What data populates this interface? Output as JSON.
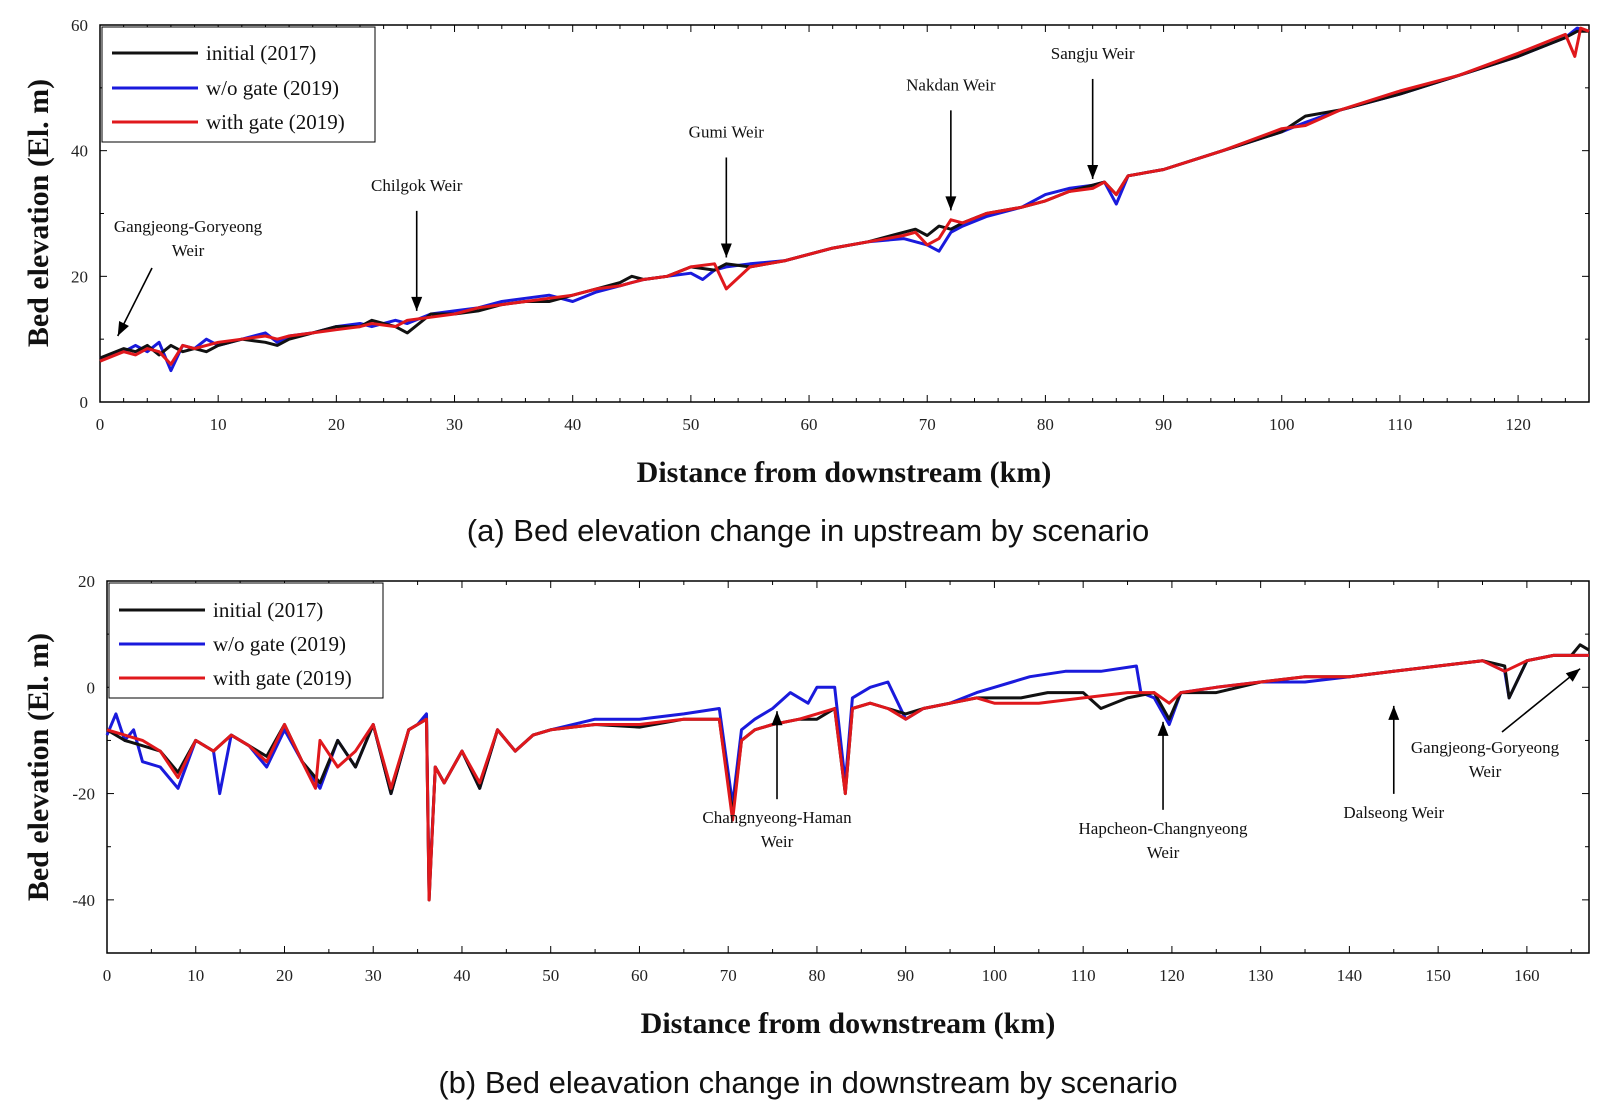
{
  "chart_data": [
    {
      "type": "line",
      "panel": "a",
      "caption": "(a) Bed elevation change in upstream by scenario",
      "xlabel": "Distance from downstream (km)",
      "ylabel": "Bed elevation (El. m)",
      "xlim": [
        0,
        126
      ],
      "ylim": [
        0,
        60
      ],
      "xticks": [
        0,
        10,
        20,
        30,
        40,
        50,
        60,
        70,
        80,
        90,
        100,
        110,
        120
      ],
      "yticks": [
        0,
        20,
        40,
        60
      ],
      "legend_position": "top-left",
      "series": [
        {
          "name": "initial (2017)",
          "color": "#111111",
          "x": [
            0,
            2,
            3,
            4,
            5,
            6,
            7,
            8,
            9,
            10,
            12,
            14,
            15,
            16,
            18,
            20,
            22,
            23,
            25,
            26,
            28,
            30,
            32,
            34,
            36,
            38,
            40,
            42,
            44,
            45,
            46,
            48,
            50,
            52,
            53,
            55,
            58,
            60,
            62,
            65,
            68,
            69,
            70,
            71,
            72,
            73,
            75,
            78,
            80,
            82,
            84,
            85,
            86,
            87,
            90,
            95,
            100,
            102,
            105,
            110,
            115,
            120,
            124,
            125,
            126
          ],
          "y": [
            7,
            8.5,
            8,
            9,
            7.5,
            9,
            8,
            8.5,
            8,
            9,
            10,
            9.5,
            9,
            10,
            11,
            12,
            12,
            13,
            12,
            11,
            14,
            14,
            14.5,
            15.5,
            16,
            16,
            17,
            18,
            19,
            20,
            19.5,
            20,
            21.5,
            21,
            22,
            21.5,
            22.5,
            23.5,
            24.5,
            25.5,
            27,
            27.5,
            26.5,
            28,
            27.5,
            28.5,
            30,
            31,
            32,
            33.5,
            34.5,
            35,
            33,
            36,
            37,
            40,
            43,
            45.5,
            46.5,
            49,
            52,
            55,
            58,
            59,
            59
          ]
        },
        {
          "name": "w/o gate (2019)",
          "color": "#1a1adc",
          "x": [
            0,
            2,
            3,
            4,
            5,
            6,
            7,
            8,
            9,
            10,
            12,
            14,
            15,
            16,
            18,
            20,
            22,
            23,
            25,
            26,
            28,
            30,
            32,
            34,
            36,
            38,
            40,
            42,
            44,
            45,
            46,
            48,
            50,
            51,
            52,
            53,
            55,
            58,
            60,
            62,
            65,
            68,
            70,
            71,
            72,
            73,
            75,
            78,
            80,
            82,
            84,
            85,
            86,
            87,
            90,
            95,
            100,
            102,
            105,
            110,
            115,
            120,
            124,
            125,
            126
          ],
          "y": [
            7,
            8,
            9,
            8,
            9.5,
            5,
            9,
            8.5,
            10,
            9,
            10,
            11,
            9.5,
            10.5,
            11,
            12,
            12.5,
            12,
            13,
            12.5,
            14,
            14.5,
            15,
            16,
            16.5,
            17,
            16,
            17.5,
            18.5,
            19,
            19.5,
            20,
            20.5,
            19.5,
            21,
            21.5,
            22,
            22.5,
            23.5,
            24.5,
            25.5,
            26,
            25,
            24,
            27,
            28,
            29.5,
            31,
            33,
            34,
            34.5,
            35,
            31.5,
            36,
            37,
            40,
            43,
            44.5,
            46.5,
            49,
            52,
            55,
            58,
            59.5,
            59
          ]
        },
        {
          "name": "with gate (2019)",
          "color": "#e0181c",
          "x": [
            0,
            2,
            3,
            4,
            5,
            6,
            7,
            8,
            9,
            10,
            12,
            14,
            15,
            16,
            18,
            20,
            22,
            23,
            25,
            26,
            28,
            30,
            32,
            34,
            36,
            38,
            40,
            42,
            44,
            45,
            46,
            48,
            50,
            52,
            53,
            55,
            58,
            60,
            62,
            65,
            68,
            69,
            70,
            71,
            72,
            73,
            75,
            78,
            80,
            82,
            84,
            85,
            86,
            87,
            90,
            95,
            100,
            102,
            105,
            110,
            115,
            120,
            124,
            124.8,
            125.3,
            126
          ],
          "y": [
            6.5,
            8,
            7.5,
            8.5,
            8,
            6,
            9,
            8.5,
            9,
            9.5,
            10,
            10.5,
            10,
            10.5,
            11,
            11.5,
            12,
            12.5,
            12,
            13,
            13.5,
            14,
            15,
            15.5,
            16,
            16.5,
            17,
            18,
            18.5,
            19,
            19.5,
            20,
            21.5,
            22,
            18,
            21.5,
            22.5,
            23.5,
            24.5,
            25.5,
            26.5,
            27,
            25,
            26,
            29,
            28.5,
            30,
            31,
            32,
            33.5,
            34,
            35,
            33,
            36,
            37,
            40,
            43.5,
            44,
            46.5,
            49.5,
            52,
            55.5,
            58.5,
            55,
            59.5,
            59
          ]
        }
      ],
      "annotations": [
        {
          "lines": [
            "Gangjeong-Goryeong",
            "Weir"
          ],
          "x": 1.5,
          "y": 10.5
        },
        {
          "lines": [
            "Chilgok Weir"
          ],
          "x": 26.8,
          "y": 14.5
        },
        {
          "lines": [
            "Gumi Weir"
          ],
          "x": 53,
          "y": 23
        },
        {
          "lines": [
            "Nakdan Weir"
          ],
          "x": 72,
          "y": 30.5
        },
        {
          "lines": [
            "Sangju Weir"
          ],
          "x": 84,
          "y": 35.5
        }
      ]
    },
    {
      "type": "line",
      "panel": "b",
      "caption": "(b) Bed eleavation change in downstream by scenario",
      "xlabel": "Distance from downstream (km)",
      "ylabel": "Bed elevation (El. m)",
      "xlim": [
        0,
        167
      ],
      "ylim": [
        -50,
        20
      ],
      "xticks": [
        0,
        10,
        20,
        30,
        40,
        50,
        60,
        70,
        80,
        90,
        100,
        110,
        120,
        130,
        140,
        150,
        160
      ],
      "yticks": [
        -40,
        -20,
        0,
        20
      ],
      "legend_position": "top-left",
      "series": [
        {
          "name": "initial (2017)",
          "color": "#111111",
          "x": [
            0,
            2,
            4,
            6,
            8,
            10,
            12,
            14,
            16,
            18,
            20,
            22,
            24,
            26,
            28,
            30,
            32,
            34,
            35,
            36,
            36.3,
            37,
            38,
            40,
            42,
            44,
            46,
            48,
            50,
            55,
            60,
            65,
            69,
            70.5,
            71.5,
            73,
            75,
            78,
            80,
            82,
            83.2,
            84,
            86,
            88,
            90,
            92,
            95,
            98,
            100,
            103,
            106,
            110,
            112,
            115,
            118,
            119.7,
            121,
            125,
            130,
            135,
            140,
            145,
            150,
            155,
            157.5,
            158,
            160,
            163,
            165,
            166,
            167
          ],
          "y": [
            -8,
            -10,
            -11,
            -12,
            -16,
            -10,
            -12,
            -9,
            -11,
            -13,
            -7,
            -14,
            -18,
            -10,
            -15,
            -7,
            -20,
            -8,
            -7,
            -6,
            -40,
            -15,
            -18,
            -12,
            -19,
            -8,
            -12,
            -9,
            -8,
            -7,
            -7.5,
            -6,
            -6,
            -24,
            -10,
            -8,
            -7,
            -6,
            -6,
            -4,
            -20,
            -4,
            -3,
            -4,
            -5,
            -4,
            -3,
            -2,
            -2,
            -2,
            -1,
            -1,
            -4,
            -2,
            -1,
            -6,
            -1,
            -1,
            1,
            2,
            2,
            3,
            4,
            5,
            4,
            -2,
            5,
            6,
            6,
            8,
            7
          ]
        },
        {
          "name": "w/o gate (2019)",
          "color": "#1a1adc",
          "x": [
            0,
            1,
            2,
            3,
            4,
            6,
            8,
            10,
            12,
            12.7,
            14,
            16,
            18,
            20,
            22,
            24,
            26,
            28,
            30,
            32,
            34,
            35,
            36,
            36.3,
            37,
            38,
            40,
            42,
            44,
            46,
            48,
            50,
            55,
            60,
            65,
            69,
            70.5,
            71.5,
            73,
            75,
            77,
            79,
            80,
            82,
            83.2,
            84,
            86,
            88,
            90,
            92,
            95,
            98,
            100,
            102,
            104,
            108,
            112,
            116,
            116.5,
            118,
            119.7,
            121,
            125,
            130,
            135,
            140,
            145,
            150,
            155,
            157.5,
            158,
            160,
            163,
            165,
            167
          ],
          "y": [
            -9,
            -5,
            -10,
            -8,
            -14,
            -15,
            -19,
            -10,
            -12,
            -20,
            -9,
            -11,
            -15,
            -8,
            -14,
            -19,
            -10,
            -15,
            -7,
            -20,
            -8,
            -7,
            -5,
            -39,
            -15,
            -18,
            -12,
            -19,
            -8,
            -12,
            -9,
            -8,
            -6,
            -6,
            -5,
            -4,
            -22,
            -8,
            -6,
            -4,
            -1,
            -3,
            0,
            0,
            -18,
            -2,
            0,
            1,
            -6,
            -4,
            -3,
            -1,
            0,
            1,
            2,
            3,
            3,
            4,
            -1,
            -2,
            -7,
            -1,
            0,
            1,
            1,
            2,
            3,
            4,
            5,
            3,
            -2,
            5,
            6,
            6,
            6
          ]
        },
        {
          "name": "with gate (2019)",
          "color": "#e0181c",
          "x": [
            0,
            2,
            4,
            6,
            8,
            10,
            12,
            14,
            16,
            18,
            20,
            22,
            23.5,
            24,
            26,
            28,
            30,
            32,
            34,
            35,
            36,
            36.3,
            37,
            38,
            40,
            42,
            44,
            46,
            48,
            50,
            55,
            60,
            65,
            69,
            70.5,
            71.5,
            73,
            75,
            78,
            80,
            82,
            83.2,
            84,
            86,
            88,
            90,
            92,
            95,
            98,
            100,
            105,
            110,
            115,
            118,
            119.7,
            121,
            125,
            130,
            135,
            140,
            145,
            150,
            155,
            157.5,
            160,
            163,
            165,
            167
          ],
          "y": [
            -8,
            -9,
            -10,
            -12,
            -17,
            -10,
            -12,
            -9,
            -11,
            -14,
            -7,
            -14,
            -19,
            -10,
            -15,
            -12,
            -7,
            -19,
            -8,
            -7,
            -6,
            -40,
            -15,
            -18,
            -12,
            -18,
            -8,
            -12,
            -9,
            -8,
            -7,
            -7,
            -6,
            -6,
            -25,
            -10,
            -8,
            -7,
            -6,
            -5,
            -4,
            -20,
            -4,
            -3,
            -4,
            -6,
            -4,
            -3,
            -2,
            -3,
            -3,
            -2,
            -1,
            -1,
            -3,
            -1,
            0,
            1,
            2,
            2,
            3,
            4,
            5,
            3,
            5,
            6,
            6,
            6
          ]
        }
      ],
      "annotations": [
        {
          "lines": [
            "Changnyeong-Haman",
            "Weir"
          ],
          "x": 75.5,
          "y": -4.5
        },
        {
          "lines": [
            "Hapcheon-Changnyeong",
            "Weir"
          ],
          "x": 119,
          "y": -6.5
        },
        {
          "lines": [
            "Dalseong Weir"
          ],
          "x": 145,
          "y": -3.5
        },
        {
          "lines": [
            "Gangjeong-Goryeong",
            "Weir"
          ],
          "x": 166,
          "y": 3.5
        }
      ]
    }
  ]
}
